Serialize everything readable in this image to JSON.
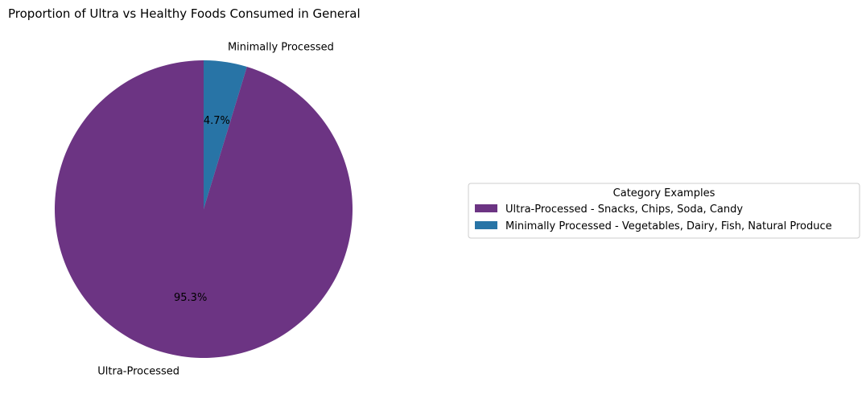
{
  "chart_data": {
    "type": "pie",
    "title": "Proportion of Ultra vs Healthy Foods Consumed in General",
    "slices": [
      {
        "label": "Ultra-Processed",
        "value": 95.3,
        "pct_label": "95.3%",
        "color": "#6c3483"
      },
      {
        "label": "Minimally Processed",
        "value": 4.7,
        "pct_label": "4.7%",
        "color": "#2874a6"
      }
    ],
    "legend": {
      "title": "Category Examples",
      "placement": "right",
      "entries": [
        {
          "label": "Ultra-Processed - Snacks, Chips, Soda, Candy",
          "color": "#6c3483"
        },
        {
          "label": "Minimally Processed - Vegetables, Dairy, Fish, Natural Produce",
          "color": "#2874a6"
        }
      ]
    }
  }
}
